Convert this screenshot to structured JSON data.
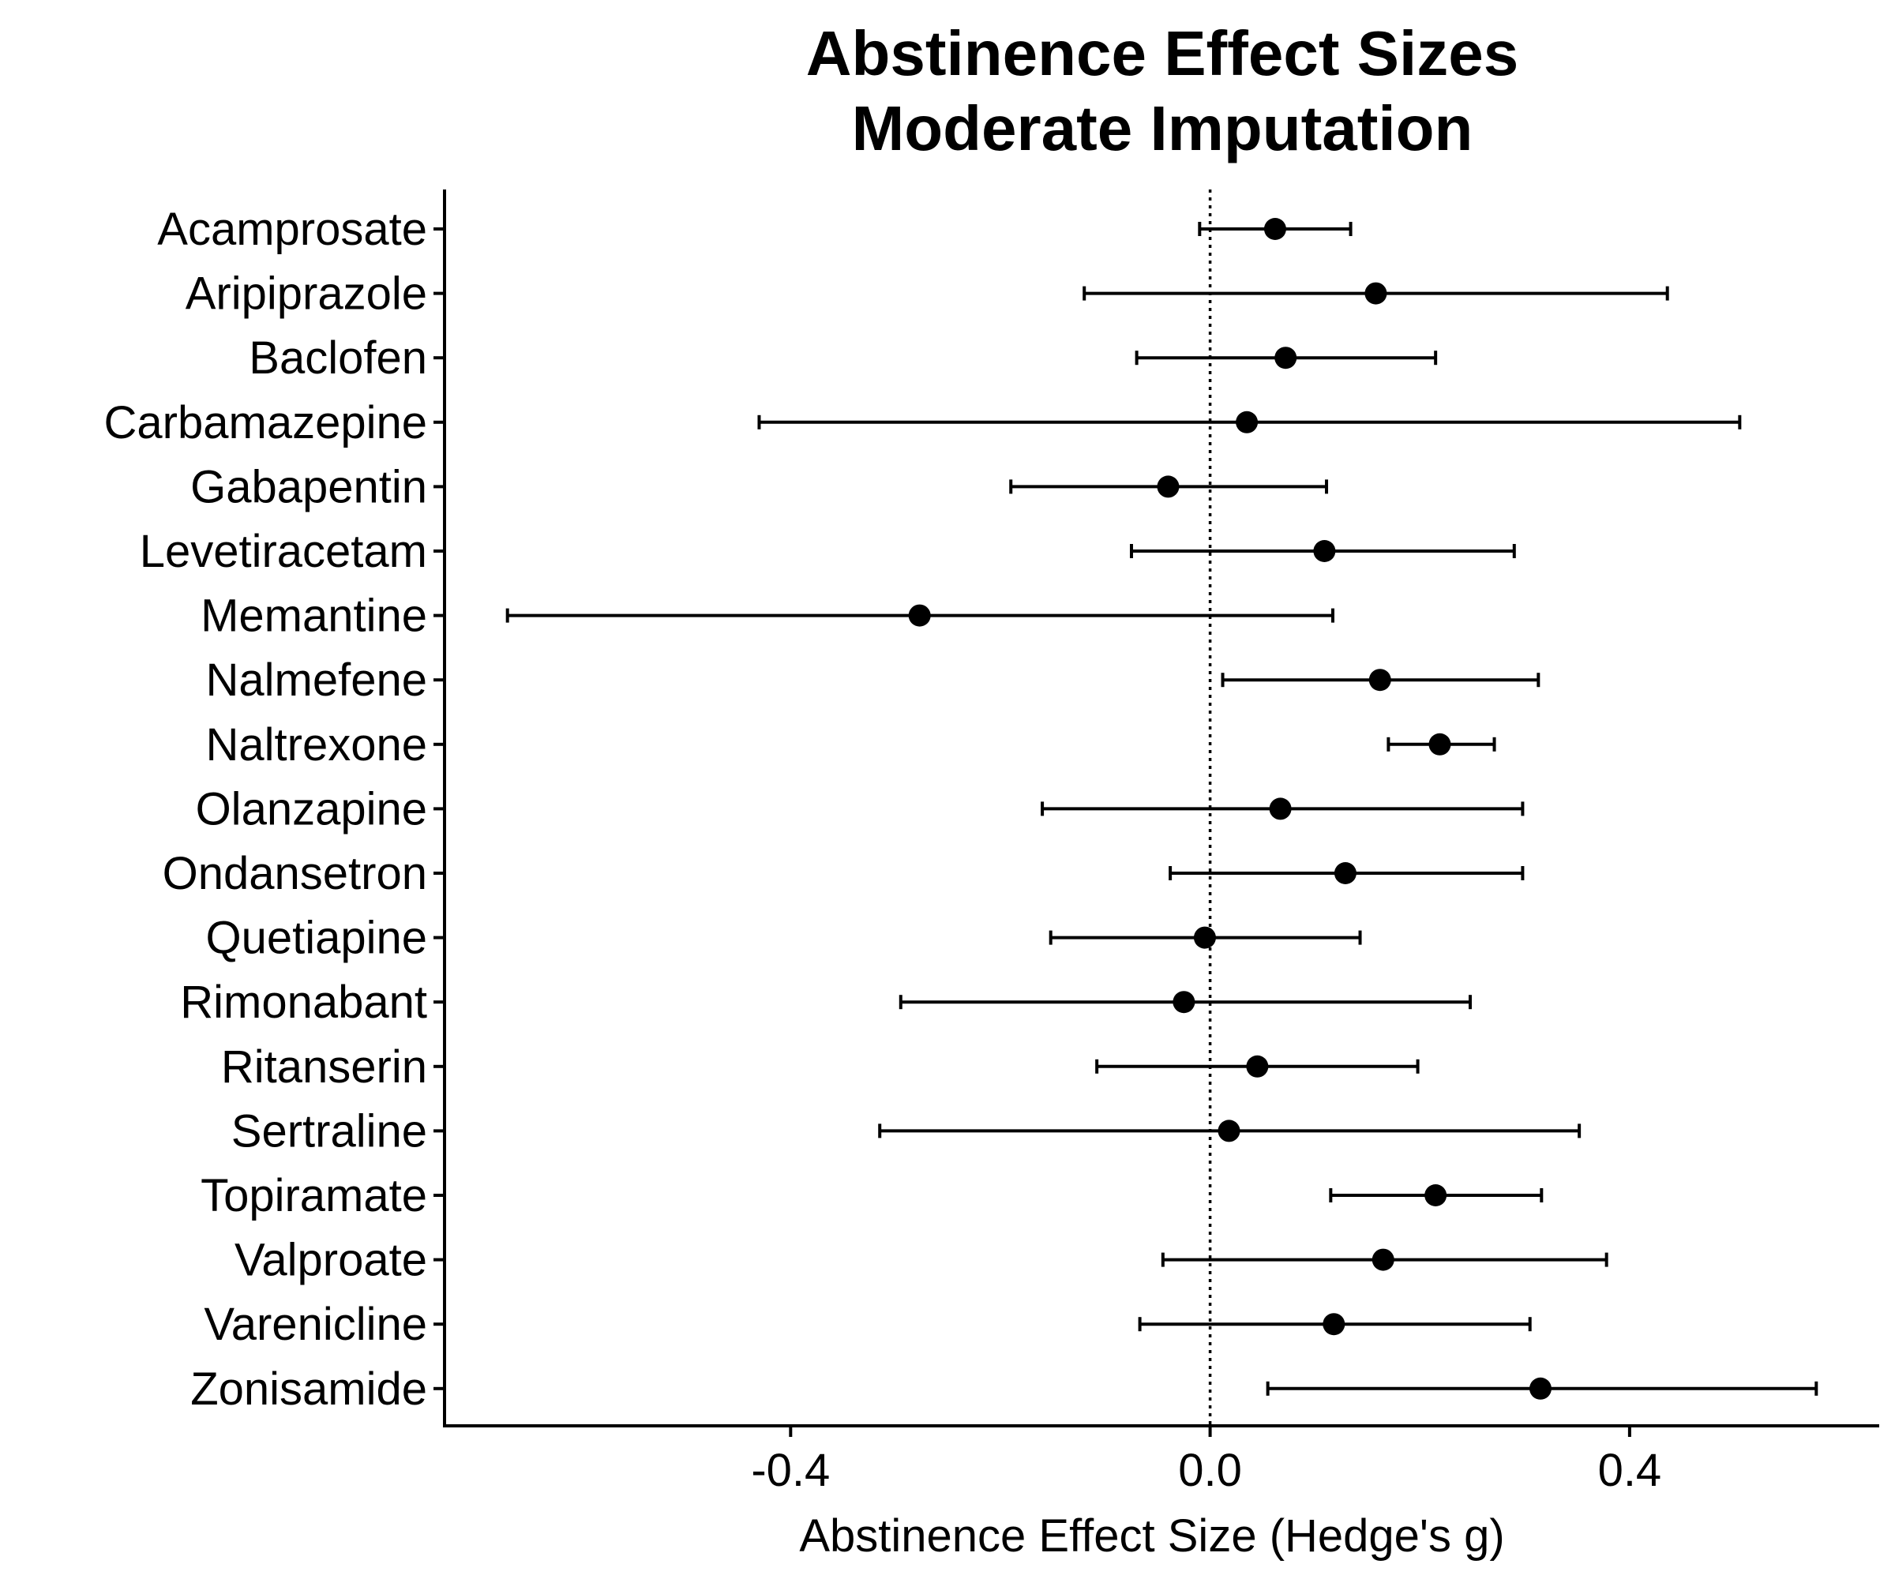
{
  "chart_data": {
    "type": "forest",
    "title": [
      "Abstinence Effect Sizes",
      "Moderate Imputation"
    ],
    "xlabel": "Abstinence Effect Size (Hedge's g)",
    "xlim": [
      -0.73,
      0.638
    ],
    "xticks": [
      -0.4,
      0.0,
      0.4
    ],
    "xtick_labels": [
      "-0.4",
      "0.0",
      "0.4"
    ],
    "reference_line": 0,
    "categories": [
      "Acamprosate",
      "Aripiprazole",
      "Baclofen",
      "Carbamazepine",
      "Gabapentin",
      "Levetiracetam",
      "Memantine",
      "Nalmefene",
      "Naltrexone",
      "Olanzapine",
      "Ondansetron",
      "Quetiapine",
      "Rimonabant",
      "Ritanserin",
      "Sertraline",
      "Topiramate",
      "Valproate",
      "Varenicline",
      "Zonisamide"
    ],
    "estimate": [
      0.062,
      0.158,
      0.072,
      0.035,
      -0.04,
      0.109,
      -0.277,
      0.162,
      0.219,
      0.067,
      0.129,
      -0.005,
      -0.025,
      0.045,
      0.018,
      0.215,
      0.165,
      0.118,
      0.315
    ],
    "lower": [
      -0.01,
      -0.12,
      -0.07,
      -0.43,
      -0.19,
      -0.075,
      -0.67,
      0.012,
      0.17,
      -0.16,
      -0.038,
      -0.152,
      -0.295,
      -0.108,
      -0.315,
      0.115,
      -0.045,
      -0.067,
      0.055
    ],
    "upper": [
      0.134,
      0.436,
      0.215,
      0.505,
      0.111,
      0.29,
      0.117,
      0.313,
      0.271,
      0.298,
      0.298,
      0.143,
      0.248,
      0.198,
      0.352,
      0.316,
      0.378,
      0.305,
      0.578
    ]
  }
}
